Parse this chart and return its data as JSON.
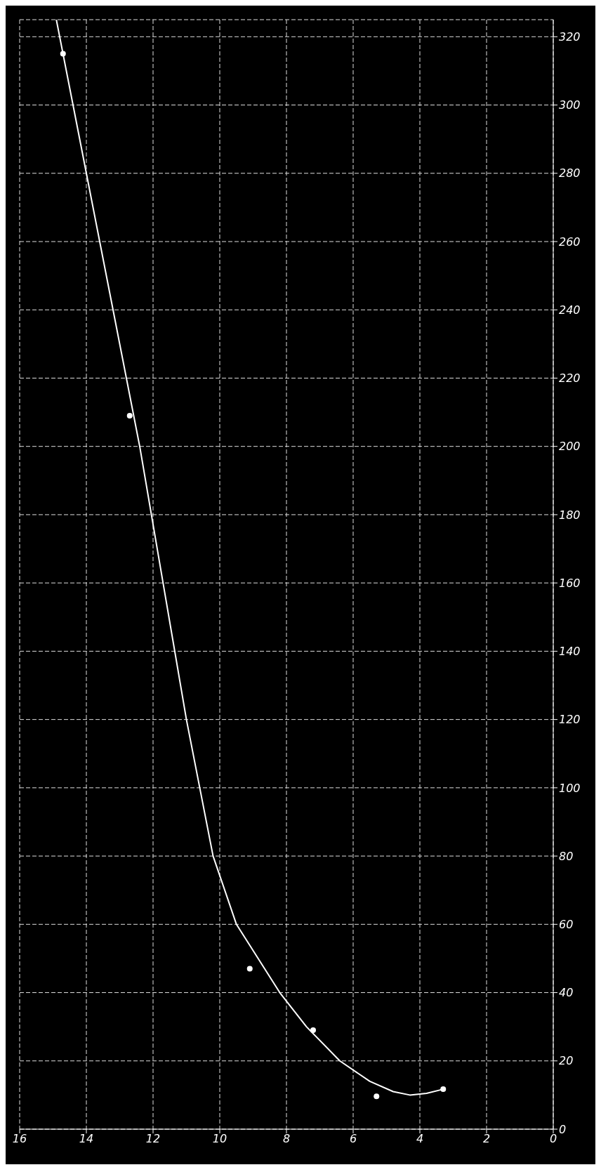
{
  "chart_data": {
    "type": "scatter",
    "xlim": [
      16,
      0
    ],
    "xticks": [
      16,
      14,
      12,
      10,
      8,
      6,
      4,
      2,
      0
    ],
    "ylim": [
      0,
      325
    ],
    "yticks": [
      0,
      20,
      40,
      60,
      80,
      100,
      120,
      140,
      160,
      180,
      200,
      220,
      240,
      260,
      280,
      300,
      320
    ],
    "grid": true,
    "series": [
      {
        "type": "scatter",
        "marker": "circle",
        "color": "#ffffff",
        "x": [
          14.7,
          12.7,
          9.1,
          7.2,
          5.3,
          3.3
        ],
        "values": [
          315,
          209,
          47,
          29,
          9.6,
          11.7
        ]
      },
      {
        "type": "line",
        "marker": "none",
        "color": "#ffffff",
        "x": [
          14.9,
          14.4,
          14.0,
          13.2,
          12.4,
          11.7,
          11.0,
          10.2,
          9.5,
          8.2,
          7.4,
          6.4,
          5.5,
          4.8,
          4.3,
          3.8,
          3.3
        ],
        "values": [
          325,
          300,
          280,
          240,
          200,
          160,
          120,
          80,
          60,
          40,
          30,
          20,
          14,
          11,
          10,
          10.5,
          11.7
        ]
      }
    ]
  }
}
